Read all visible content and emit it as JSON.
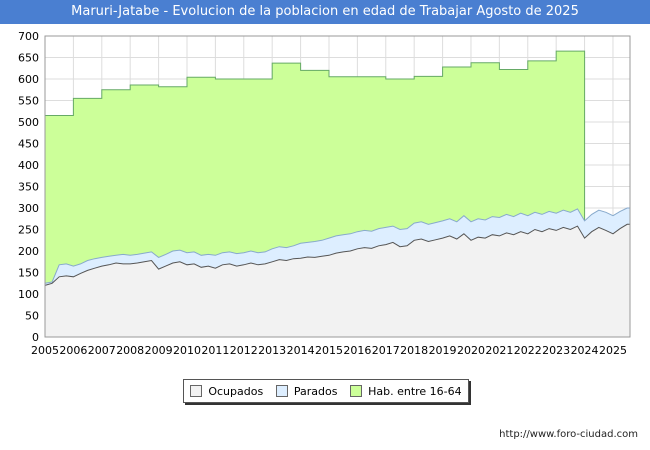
{
  "chart_data": {
    "type": "area",
    "title": "Maruri-Jatabe - Evolucion de la poblacion en edad de Trabajar Agosto de 2025",
    "xlabel": "",
    "ylabel": "",
    "ylim": [
      0,
      700
    ],
    "xlim": [
      2005,
      2025.6
    ],
    "y_ticks": [
      "0",
      "50",
      "100",
      "150",
      "200",
      "250",
      "300",
      "350",
      "400",
      "450",
      "500",
      "550",
      "600",
      "650",
      "700"
    ],
    "x_ticks": [
      "2005",
      "2006",
      "2007",
      "2008",
      "2009",
      "2010",
      "2011",
      "2012",
      "2013",
      "2014",
      "2015",
      "2016",
      "2017",
      "2018",
      "2019",
      "2020",
      "2021",
      "2022",
      "2023",
      "2024",
      "2025"
    ],
    "grid": true,
    "legend_position": "bottom",
    "series": [
      {
        "name": "Ocupados",
        "color": "#f2f2f2",
        "x": [
          2005.0,
          2005.25,
          2005.5,
          2005.75,
          2006.0,
          2006.25,
          2006.5,
          2006.75,
          2007.0,
          2007.25,
          2007.5,
          2007.75,
          2008.0,
          2008.25,
          2008.5,
          2008.75,
          2009.0,
          2009.25,
          2009.5,
          2009.75,
          2010.0,
          2010.25,
          2010.5,
          2010.75,
          2011.0,
          2011.25,
          2011.5,
          2011.75,
          2012.0,
          2012.25,
          2012.5,
          2012.75,
          2013.0,
          2013.25,
          2013.5,
          2013.75,
          2014.0,
          2014.25,
          2014.5,
          2014.75,
          2015.0,
          2015.25,
          2015.5,
          2015.75,
          2016.0,
          2016.25,
          2016.5,
          2016.75,
          2017.0,
          2017.25,
          2017.5,
          2017.75,
          2018.0,
          2018.25,
          2018.5,
          2018.75,
          2019.0,
          2019.25,
          2019.5,
          2019.75,
          2020.0,
          2020.25,
          2020.5,
          2020.75,
          2021.0,
          2021.25,
          2021.5,
          2021.75,
          2022.0,
          2022.25,
          2022.5,
          2022.75,
          2023.0,
          2023.25,
          2023.5,
          2023.75,
          2024.0,
          2024.25,
          2024.5,
          2024.75,
          2025.0,
          2025.25,
          2025.5
        ],
        "values": [
          120,
          125,
          140,
          142,
          140,
          148,
          155,
          160,
          165,
          168,
          172,
          170,
          170,
          172,
          175,
          178,
          158,
          165,
          172,
          175,
          168,
          170,
          162,
          165,
          160,
          168,
          170,
          165,
          168,
          172,
          168,
          170,
          175,
          180,
          178,
          182,
          183,
          186,
          185,
          188,
          190,
          195,
          198,
          200,
          205,
          208,
          206,
          212,
          215,
          220,
          210,
          212,
          225,
          228,
          222,
          226,
          230,
          235,
          228,
          240,
          225,
          232,
          230,
          238,
          235,
          242,
          238,
          245,
          240,
          250,
          245,
          252,
          248,
          255,
          250,
          258,
          230,
          245,
          255,
          248,
          240,
          252,
          262
        ]
      },
      {
        "name": "Parados",
        "color": "#ddeeff",
        "values": [
          125,
          128,
          168,
          170,
          165,
          170,
          178,
          182,
          185,
          188,
          190,
          192,
          190,
          192,
          195,
          198,
          185,
          192,
          200,
          202,
          196,
          198,
          190,
          192,
          190,
          196,
          198,
          194,
          196,
          200,
          196,
          198,
          205,
          210,
          208,
          212,
          218,
          220,
          222,
          225,
          230,
          235,
          238,
          240,
          245,
          248,
          246,
          252,
          255,
          258,
          250,
          252,
          265,
          268,
          262,
          266,
          270,
          275,
          268,
          282,
          268,
          275,
          272,
          280,
          278,
          285,
          280,
          288,
          282,
          290,
          285,
          292,
          288,
          295,
          290,
          298,
          270,
          285,
          295,
          290,
          282,
          292,
          300
        ]
      },
      {
        "name": "Hab. entre 16-64",
        "color": "#ccff99",
        "values": [
          515,
          515,
          515,
          515,
          555,
          555,
          555,
          555,
          575,
          575,
          575,
          575,
          586,
          586,
          586,
          586,
          582,
          582,
          582,
          582,
          604,
          604,
          604,
          604,
          600,
          600,
          600,
          600,
          600,
          600,
          600,
          600,
          637,
          637,
          637,
          637,
          620,
          620,
          620,
          620,
          605,
          605,
          605,
          605,
          605,
          605,
          605,
          605,
          600,
          600,
          600,
          600,
          606,
          606,
          606,
          606,
          628,
          628,
          628,
          628,
          638,
          638,
          638,
          638,
          622,
          622,
          622,
          622,
          642,
          642,
          642,
          642,
          665,
          665,
          665,
          665,
          null,
          null,
          null,
          null,
          null,
          null,
          null
        ]
      }
    ]
  },
  "legend": {
    "items": [
      {
        "label": "Ocupados",
        "color": "#f2f2f2"
      },
      {
        "label": "Parados",
        "color": "#ddeeff"
      },
      {
        "label": "Hab. entre 16-64",
        "color": "#ccff99"
      }
    ]
  },
  "footer": {
    "url": "http://www.foro-ciudad.com"
  }
}
